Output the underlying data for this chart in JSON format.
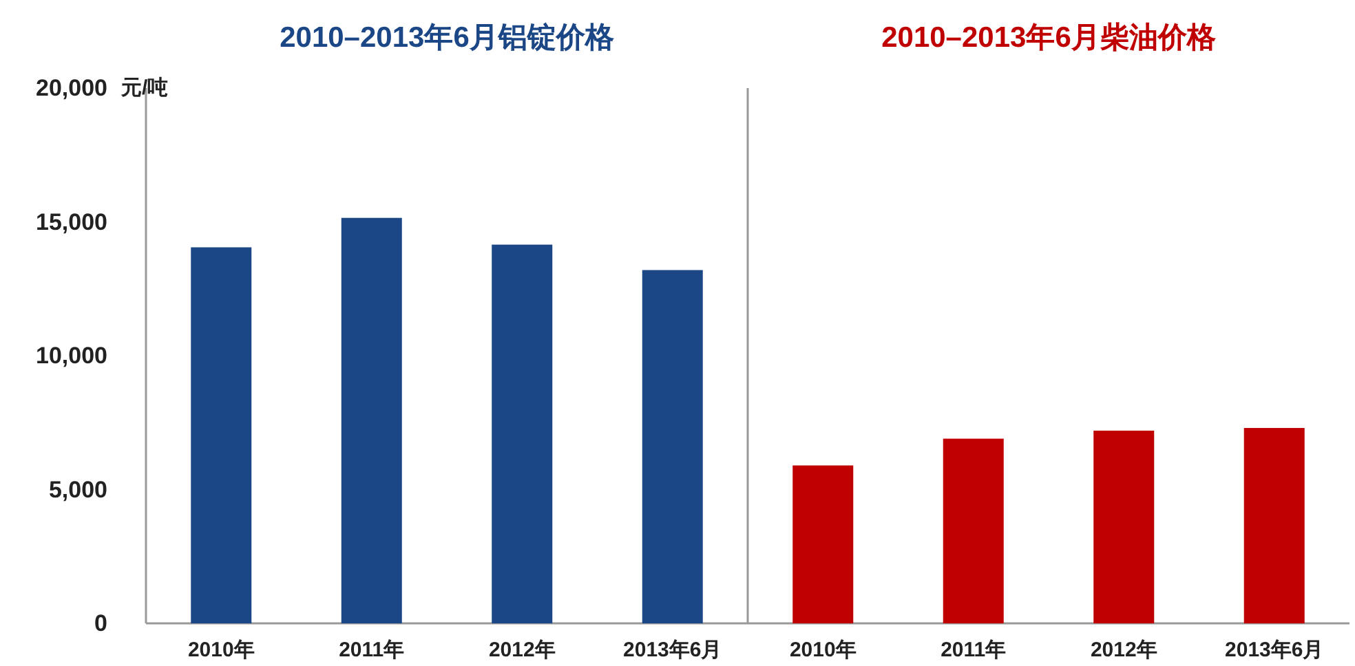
{
  "chart_data": [
    {
      "type": "bar",
      "title": "2010–2013年6月铝锭价格",
      "ylabel": "元/吨",
      "categories": [
        "2010年",
        "2011年",
        "2012年",
        "2013年6月"
      ],
      "values": [
        14050,
        15150,
        14150,
        13200
      ],
      "color": "#1b4787",
      "ylim": [
        0,
        20000
      ],
      "yticks": [
        0,
        {
          "value": 5000,
          "label": "5,000"
        },
        {
          "value": 10000,
          "label": "10,000"
        },
        {
          "value": 15000,
          "label": "15,000"
        },
        {
          "value": 20000,
          "label": "20,000"
        }
      ]
    },
    {
      "type": "bar",
      "title": "2010–2013年6月柴油价格",
      "categories": [
        "2010年",
        "2011年",
        "2012年",
        "2013年6月"
      ],
      "values": [
        5900,
        6900,
        7200,
        7300
      ],
      "color": "#c00000",
      "ylim": [
        0,
        20000
      ],
      "tick_labels": "x"
    }
  ]
}
